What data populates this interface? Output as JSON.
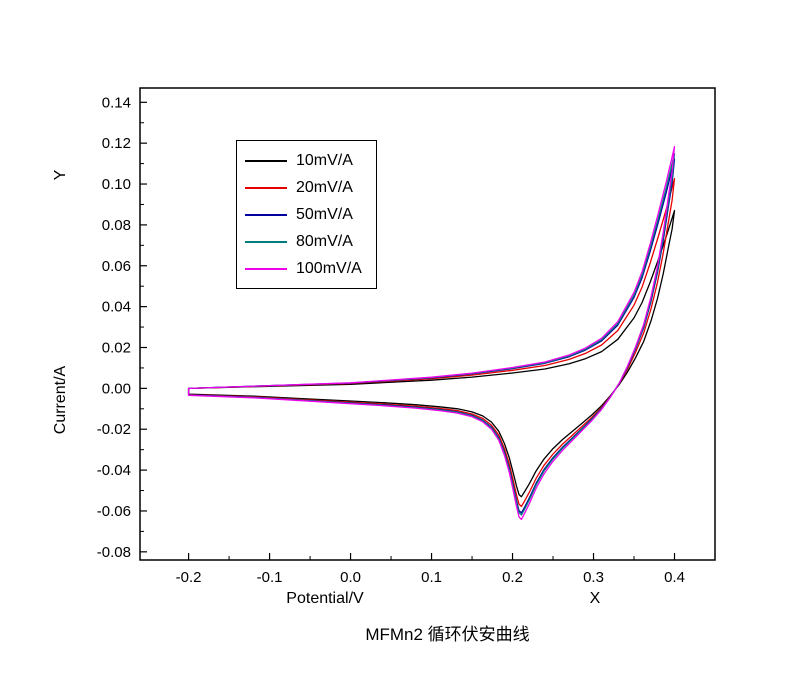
{
  "page": {
    "background": "#ffffff"
  },
  "title": {
    "text": "MFMn2 循环伏安曲线"
  },
  "axis_labels": {
    "x": "Potential/V",
    "y": "Current/A",
    "x_extra": "X",
    "y_extra": "Y"
  },
  "legend": {
    "items": [
      {
        "label": "10mV/A",
        "color": "#000000"
      },
      {
        "label": "20mV/A",
        "color": "#e60000"
      },
      {
        "label": "50mV/A",
        "color": "#0000a0"
      },
      {
        "label": "80mV/A",
        "color": "#007d7d"
      },
      {
        "label": "100mV/A",
        "color": "#ee00ee"
      }
    ]
  },
  "chart_data": {
    "type": "line",
    "subtype": "cyclic-voltammogram",
    "title": "MFMn2 循环伏安曲线",
    "xlabel": "Potential/V",
    "ylabel": "Current/A",
    "xlim": [
      -0.26,
      0.45
    ],
    "ylim": [
      -0.084,
      0.147
    ],
    "x_ticks": [
      -0.2,
      -0.1,
      0.0,
      0.1,
      0.2,
      0.3,
      0.4
    ],
    "x_tick_labels": [
      "-0.2",
      "-0.1",
      "0.0",
      "0.1",
      "0.2",
      "0.3",
      "0.4"
    ],
    "y_ticks": [
      -0.08,
      -0.06,
      -0.04,
      -0.02,
      0.0,
      0.02,
      0.04,
      0.06,
      0.08,
      0.1,
      0.12,
      0.14
    ],
    "y_tick_labels": [
      "-0.08",
      "-0.06",
      "-0.04",
      "-0.02",
      "0.00",
      "0.02",
      "0.04",
      "0.06",
      "0.08",
      "0.10",
      "0.12",
      "0.14"
    ],
    "grid": false,
    "legend_position": "upper-left-inside",
    "base_loop": {
      "forward_x": [
        -0.2,
        -0.15,
        -0.1,
        -0.05,
        0.0,
        0.05,
        0.1,
        0.15,
        0.2,
        0.24,
        0.27,
        0.29,
        0.31,
        0.33,
        0.35,
        0.36,
        0.37,
        0.38,
        0.39,
        0.4
      ],
      "forward_y": [
        0.0,
        0.0005,
        0.001,
        0.0015,
        0.002,
        0.003,
        0.004,
        0.0055,
        0.0075,
        0.0095,
        0.012,
        0.0145,
        0.018,
        0.024,
        0.0345,
        0.042,
        0.052,
        0.063,
        0.0745,
        0.087
      ],
      "reverse_x": [
        0.397,
        0.392,
        0.386,
        0.379,
        0.371,
        0.362,
        0.352,
        0.342,
        0.332,
        0.321,
        0.31,
        0.298,
        0.286,
        0.274,
        0.262,
        0.25,
        0.239,
        0.229,
        0.221,
        0.215,
        0.211,
        0.208,
        0.205,
        0.201,
        0.196,
        0.19,
        0.183,
        0.174,
        0.163,
        0.15,
        0.132,
        0.11,
        0.08,
        0.04,
        0.0,
        -0.06,
        -0.12,
        -0.2
      ],
      "reverse_y": [
        0.078,
        0.068,
        0.056,
        0.044,
        0.033,
        0.023,
        0.015,
        0.008,
        0.002,
        -0.0035,
        -0.0085,
        -0.013,
        -0.017,
        -0.021,
        -0.025,
        -0.0295,
        -0.0345,
        -0.0405,
        -0.0465,
        -0.0505,
        -0.053,
        -0.052,
        -0.048,
        -0.0415,
        -0.034,
        -0.027,
        -0.021,
        -0.0165,
        -0.0135,
        -0.0115,
        -0.01,
        -0.009,
        -0.008,
        -0.007,
        -0.0062,
        -0.005,
        -0.0038,
        -0.0028
      ]
    },
    "series": [
      {
        "name": "10mV/A",
        "color": "#000000",
        "pos_scale": 1.0,
        "neg_scale": 1.0,
        "anodic_peak_A": 0.087,
        "cathodic_peak_A": -0.053,
        "cathodic_peak_V": 0.21
      },
      {
        "name": "20mV/A",
        "color": "#e60000",
        "pos_scale": 1.18,
        "neg_scale": 1.09,
        "anodic_peak_A": 0.103,
        "cathodic_peak_A": -0.058,
        "cathodic_peak_V": 0.21
      },
      {
        "name": "50mV/A",
        "color": "#0000a0",
        "pos_scale": 1.29,
        "neg_scale": 1.15,
        "anodic_peak_A": 0.112,
        "cathodic_peak_A": -0.061,
        "cathodic_peak_V": 0.21
      },
      {
        "name": "80mV/A",
        "color": "#007d7d",
        "pos_scale": 1.32,
        "neg_scale": 1.17,
        "anodic_peak_A": 0.115,
        "cathodic_peak_A": -0.062,
        "cathodic_peak_V": 0.21
      },
      {
        "name": "100mV/A",
        "color": "#ee00ee",
        "pos_scale": 1.36,
        "neg_scale": 1.21,
        "anodic_peak_A": 0.118,
        "cathodic_peak_A": -0.064,
        "cathodic_peak_V": 0.21
      }
    ]
  }
}
